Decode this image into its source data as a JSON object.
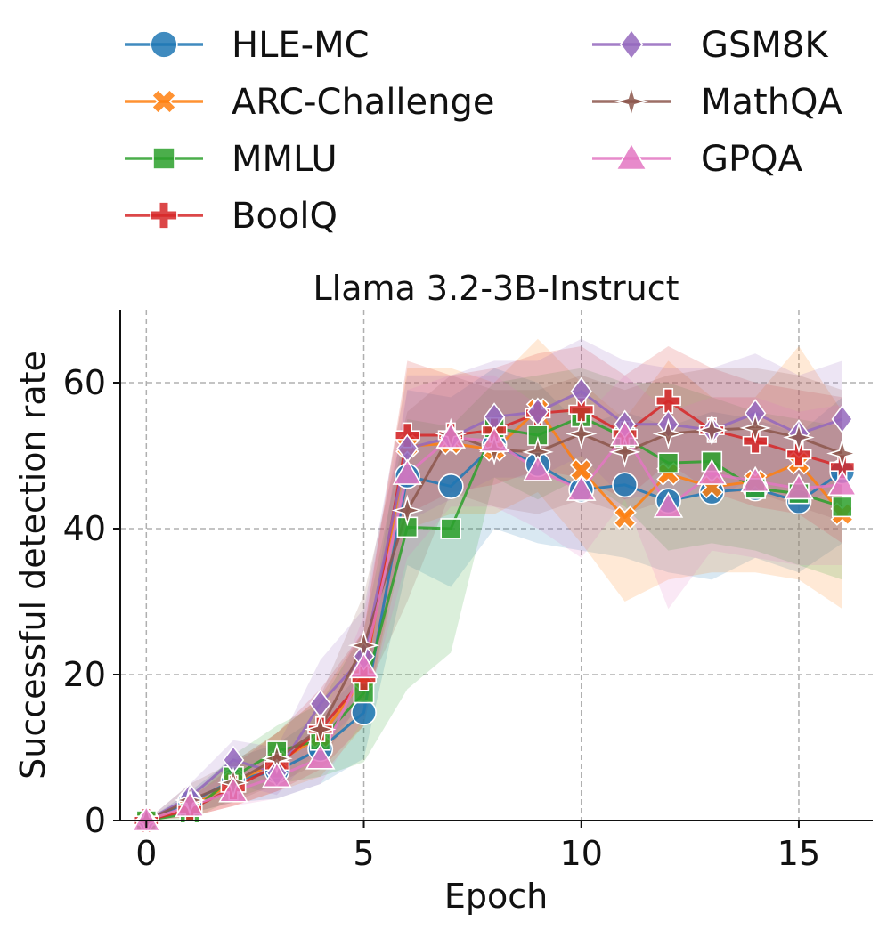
{
  "chart_data": {
    "type": "line",
    "title": "Llama 3.2-3B-Instruct",
    "xlabel": "Epoch",
    "ylabel": "Successful detection rate",
    "xlim": [
      -0.6,
      16.7
    ],
    "ylim": [
      0,
      70
    ],
    "xticks": [
      0,
      5,
      10,
      15
    ],
    "yticks": [
      0,
      20,
      40,
      60
    ],
    "grid": "dashed",
    "legend_position": "top",
    "x": [
      0,
      1,
      2,
      3,
      4,
      5,
      6,
      7,
      8,
      9,
      10,
      11,
      12,
      13,
      14,
      15,
      16
    ],
    "series": [
      {
        "name": "HLE-MC",
        "color": "#1f77b4",
        "marker": "circle",
        "values": [
          0,
          2.5,
          5.5,
          6.8,
          9.8,
          14.8,
          47.2,
          45.8,
          51.5,
          48.8,
          45.3,
          46.0,
          43.8,
          45.0,
          45.5,
          43.7,
          47.8
        ],
        "band": [
          [
            0,
            0
          ],
          [
            1,
            4
          ],
          [
            2.5,
            8.5
          ],
          [
            3,
            10.5
          ],
          [
            5,
            14.5
          ],
          [
            8.5,
            20.5
          ],
          [
            35,
            59
          ],
          [
            32,
            58
          ],
          [
            40,
            62
          ],
          [
            38,
            60
          ],
          [
            37,
            54
          ],
          [
            36,
            56
          ],
          [
            34,
            54
          ],
          [
            33,
            56
          ],
          [
            36,
            55
          ],
          [
            34,
            53
          ],
          [
            38,
            58
          ]
        ]
      },
      {
        "name": "ARC-Challenge",
        "color": "#ff7f0e",
        "marker": "x",
        "values": [
          0,
          1.8,
          5.2,
          8.0,
          11.5,
          19.5,
          51.3,
          51.7,
          50.8,
          56.3,
          48.0,
          41.5,
          47.5,
          45.7,
          46.5,
          49.0,
          42.0
        ],
        "band": [
          [
            0,
            0
          ],
          [
            0.5,
            3.5
          ],
          [
            2,
            8
          ],
          [
            4,
            12
          ],
          [
            6,
            17
          ],
          [
            13,
            26
          ],
          [
            40,
            62
          ],
          [
            42,
            62
          ],
          [
            42,
            60
          ],
          [
            45,
            66
          ],
          [
            38,
            60
          ],
          [
            30,
            55
          ],
          [
            33,
            63
          ],
          [
            34,
            58
          ],
          [
            34,
            58
          ],
          [
            33,
            65
          ],
          [
            29,
            56
          ]
        ]
      },
      {
        "name": "MMLU",
        "color": "#2ca02c",
        "marker": "square",
        "values": [
          0,
          1.0,
          6.0,
          9.5,
          11.0,
          17.5,
          40.2,
          40.0,
          53.8,
          52.8,
          55.3,
          52.5,
          49.0,
          49.2,
          45.5,
          44.8,
          43.0
        ],
        "band": [
          [
            0,
            0
          ],
          [
            0,
            3
          ],
          [
            3,
            9
          ],
          [
            5,
            13
          ],
          [
            6,
            16
          ],
          [
            8,
            26
          ],
          [
            18,
            55
          ],
          [
            23,
            54
          ],
          [
            47,
            60
          ],
          [
            44,
            61
          ],
          [
            47,
            62
          ],
          [
            43,
            60
          ],
          [
            37,
            60
          ],
          [
            38,
            58
          ],
          [
            37,
            56
          ],
          [
            35,
            55
          ],
          [
            33,
            54
          ]
        ]
      },
      {
        "name": "BoolQ",
        "color": "#d62728",
        "marker": "plus",
        "values": [
          0,
          1.5,
          4.5,
          7.5,
          12.5,
          19.5,
          52.8,
          52.8,
          53.5,
          55.8,
          56.3,
          53.0,
          57.5,
          53.5,
          52.0,
          50.2,
          48.5
        ],
        "band": [
          [
            0,
            0
          ],
          [
            0.5,
            3
          ],
          [
            2,
            7.5
          ],
          [
            4,
            12
          ],
          [
            7,
            18
          ],
          [
            13,
            26
          ],
          [
            42,
            63
          ],
          [
            45,
            61
          ],
          [
            46,
            62
          ],
          [
            48,
            64
          ],
          [
            47,
            65
          ],
          [
            44,
            61
          ],
          [
            49,
            65
          ],
          [
            45,
            62
          ],
          [
            43,
            60
          ],
          [
            42,
            59
          ],
          [
            38,
            58
          ]
        ]
      },
      {
        "name": "GSM8K",
        "color": "#9467bd",
        "marker": "diamond",
        "values": [
          0,
          3.2,
          8.3,
          6.5,
          16.0,
          22.5,
          51.0,
          52.5,
          55.3,
          56.0,
          58.8,
          54.3,
          54.3,
          53.5,
          55.8,
          53.0,
          55.0
        ],
        "band": [
          [
            0,
            0
          ],
          [
            1.5,
            5
          ],
          [
            5,
            11
          ],
          [
            3.5,
            10
          ],
          [
            10,
            22
          ],
          [
            16,
            29
          ],
          [
            41,
            61
          ],
          [
            44,
            61
          ],
          [
            47,
            63
          ],
          [
            47,
            63
          ],
          [
            50,
            66
          ],
          [
            44,
            63
          ],
          [
            45,
            62
          ],
          [
            44,
            62
          ],
          [
            47,
            64
          ],
          [
            43,
            61
          ],
          [
            46,
            63
          ]
        ]
      },
      {
        "name": "MathQA",
        "color": "#8c564b",
        "marker": "star",
        "values": [
          0,
          2.8,
          5.2,
          8.5,
          12.5,
          24.0,
          42.5,
          53.0,
          50.8,
          50.5,
          53.0,
          50.5,
          53.0,
          53.5,
          53.8,
          52.5,
          50.3
        ],
        "band": [
          [
            0,
            0
          ],
          [
            1,
            5
          ],
          [
            2.5,
            8
          ],
          [
            5,
            12
          ],
          [
            8,
            17
          ],
          [
            17,
            31
          ],
          [
            30,
            56
          ],
          [
            45,
            61
          ],
          [
            43,
            59
          ],
          [
            42,
            59
          ],
          [
            44,
            61
          ],
          [
            42,
            59
          ],
          [
            44,
            61
          ],
          [
            45,
            62
          ],
          [
            45,
            62
          ],
          [
            43,
            61
          ],
          [
            41,
            59
          ]
        ]
      },
      {
        "name": "GPQA",
        "color": "#e377c2",
        "marker": "triangle",
        "values": [
          0,
          2.0,
          4.0,
          6.0,
          8.5,
          21.0,
          47.5,
          52.5,
          52.0,
          48.0,
          45.3,
          52.8,
          43.0,
          47.5,
          46.5,
          45.5,
          46.0
        ],
        "band": [
          [
            0,
            0
          ],
          [
            0.5,
            3.5
          ],
          [
            2,
            6.5
          ],
          [
            3,
            9
          ],
          [
            5,
            13
          ],
          [
            14,
            28
          ],
          [
            36,
            59
          ],
          [
            43,
            61
          ],
          [
            43,
            61
          ],
          [
            40,
            57
          ],
          [
            36,
            55
          ],
          [
            44,
            61
          ],
          [
            29,
            56
          ],
          [
            37,
            58
          ],
          [
            36,
            58
          ],
          [
            35,
            56
          ],
          [
            35,
            57
          ]
        ]
      }
    ]
  }
}
